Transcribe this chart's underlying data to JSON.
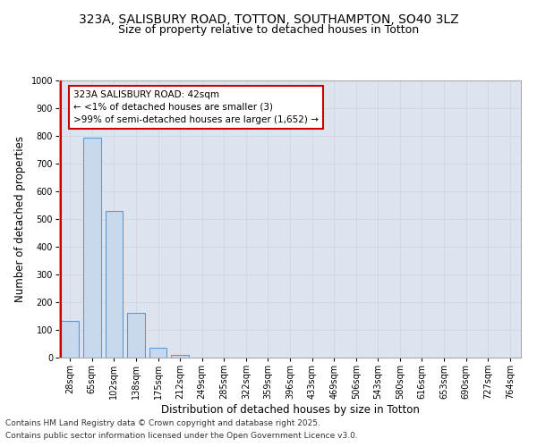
{
  "title_line1": "323A, SALISBURY ROAD, TOTTON, SOUTHAMPTON, SO40 3LZ",
  "title_line2": "Size of property relative to detached houses in Totton",
  "xlabel": "Distribution of detached houses by size in Totton",
  "ylabel": "Number of detached properties",
  "categories": [
    "28sqm",
    "65sqm",
    "102sqm",
    "138sqm",
    "175sqm",
    "212sqm",
    "249sqm",
    "285sqm",
    "322sqm",
    "359sqm",
    "396sqm",
    "433sqm",
    "469sqm",
    "506sqm",
    "543sqm",
    "580sqm",
    "616sqm",
    "653sqm",
    "690sqm",
    "727sqm",
    "764sqm"
  ],
  "values": [
    133,
    793,
    528,
    160,
    37,
    10,
    0,
    0,
    0,
    0,
    0,
    0,
    0,
    0,
    0,
    0,
    0,
    0,
    0,
    0,
    0
  ],
  "bar_color": "#c9d9ed",
  "bar_edge_color": "#5b9bd5",
  "annotation_line1": "323A SALISBURY ROAD: 42sqm",
  "annotation_line2": "← <1% of detached houses are smaller (3)",
  "annotation_line3": ">99% of semi-detached houses are larger (1,652) →",
  "annotation_box_color": "#ffffff",
  "annotation_border_color": "#cc0000",
  "red_line_color": "#cc0000",
  "ylim": [
    0,
    1000
  ],
  "yticks": [
    0,
    100,
    200,
    300,
    400,
    500,
    600,
    700,
    800,
    900,
    1000
  ],
  "grid_color": "#d0d8e4",
  "bg_color": "#dde4f0",
  "footnote1": "Contains HM Land Registry data © Crown copyright and database right 2025.",
  "footnote2": "Contains public sector information licensed under the Open Government Licence v3.0.",
  "title_fontsize": 10,
  "subtitle_fontsize": 9,
  "axis_label_fontsize": 8.5,
  "tick_fontsize": 7,
  "annotation_fontsize": 7.5,
  "footnote_fontsize": 6.5
}
